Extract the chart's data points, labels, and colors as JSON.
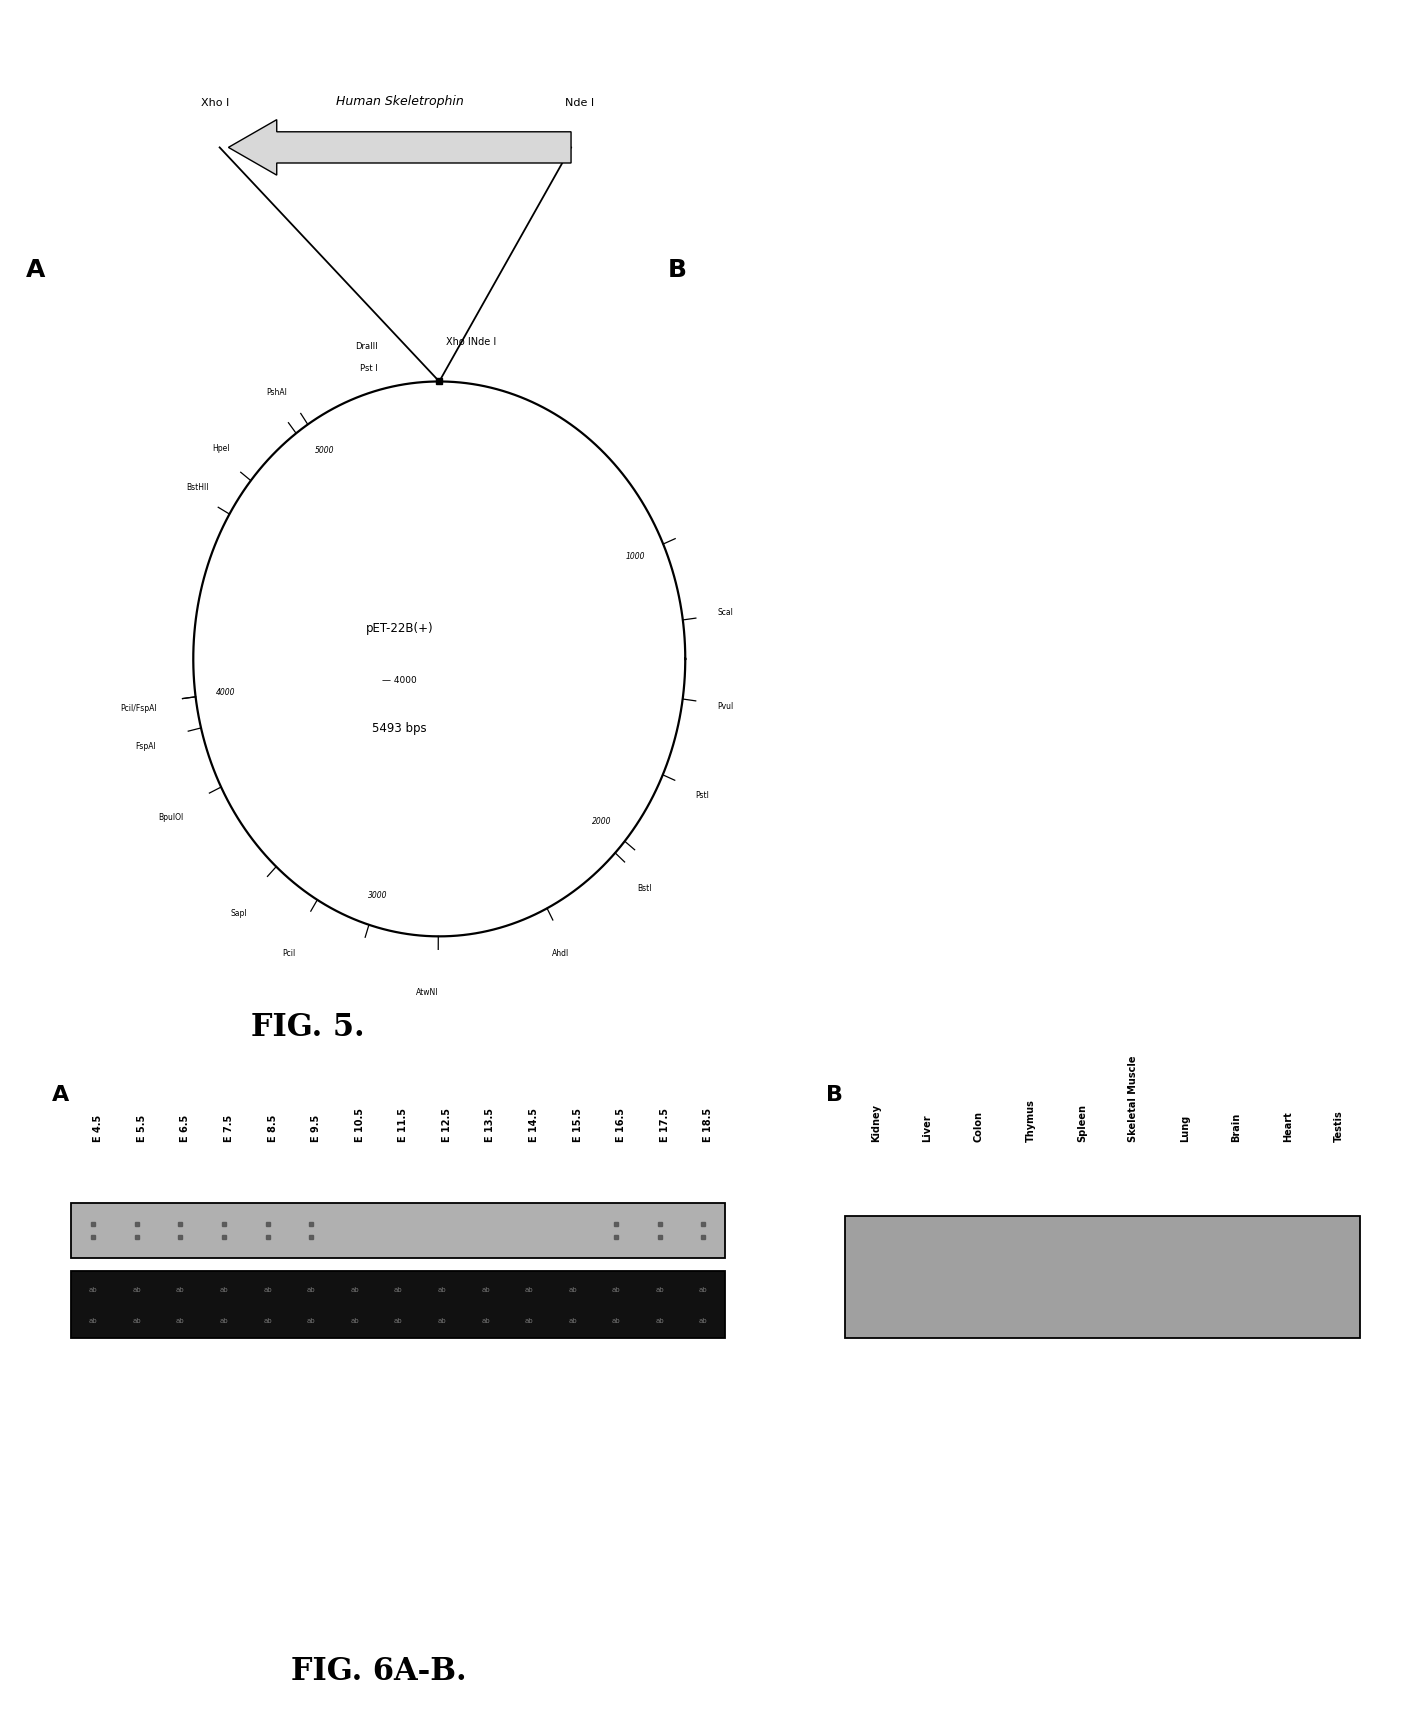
{
  "fig5_title": "FIG. 5.",
  "fig6_title": "FIG. 6A-B.",
  "plasmid_name": "pET-22B(+)",
  "plasmid_size": "5493 bps",
  "gene_name": "Human Skeletrophin",
  "insert_label_left": "Xho I",
  "insert_label_right": "Nde I",
  "total_bps": 5493,
  "tick_bps": [
    1000,
    2000,
    3000,
    4000,
    5000
  ],
  "left_labels": [
    {
      "name": "ScaI",
      "bp": 1250
    },
    {
      "name": "PvuI",
      "bp": 1500
    },
    {
      "name": "PstI",
      "bp": 1750
    },
    {
      "name": "BstI",
      "bp": 2050
    },
    {
      "name": "AhdI",
      "bp": 2350
    }
  ],
  "lower_left_labels": [
    {
      "name": "AtwNI",
      "bp": 2750
    }
  ],
  "bottom_labels": [
    {
      "name": "PciI",
      "bp": 3200
    },
    {
      "name": "SapI",
      "bp": 3380
    },
    {
      "name": "BpuIOI",
      "bp": 3700
    },
    {
      "name": "FspAI",
      "bp": 3900
    },
    {
      "name": "PciI/FspAI",
      "bp": 4000
    }
  ],
  "right_labels": [
    {
      "name": "BstHII",
      "bp": 4600
    },
    {
      "name": "HpeI",
      "bp": 4730
    },
    {
      "name": "PshAI",
      "bp": 4950
    }
  ],
  "blot_A_labels": [
    "E 4.5",
    "E 5.5",
    "E 6.5",
    "E 7.5",
    "E 8.5",
    "E 9.5",
    "E 10.5",
    "E 11.5",
    "E 12.5",
    "E 13.5",
    "E 14.5",
    "E 15.5",
    "E 16.5",
    "E 17.5",
    "E 18.5"
  ],
  "blot_B_labels": [
    "Kidney",
    "Liver",
    "Colon",
    "Thymus",
    "Spleen",
    "Skeletal Muscle",
    "Lung",
    "Brain",
    "Heart",
    "Testis"
  ]
}
